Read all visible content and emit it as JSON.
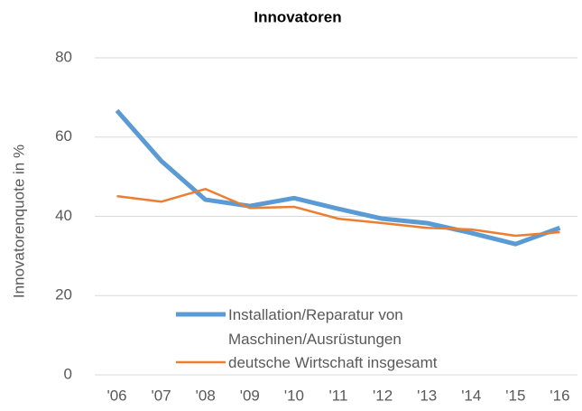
{
  "chart_data": {
    "type": "line",
    "title": "Innovatoren",
    "y_label": "Innovatorenquote in %",
    "categories": [
      "'06",
      "'07",
      "'08",
      "'09",
      "'10",
      "'11",
      "'12",
      "'13",
      "'14",
      "'15",
      "'16"
    ],
    "series": [
      {
        "name": "Installation/Reparatur von Maschinen/Ausrüstungen",
        "color": "#5b9bd5",
        "values": [
          66.7,
          54,
          44.2,
          42.6,
          44.6,
          41.9,
          39.4,
          38.3,
          35.8,
          33,
          37.1
        ]
      },
      {
        "name": "deutsche Wirtschaft insgesamt",
        "color": "#ed7d31",
        "values": [
          45.1,
          43.7,
          46.9,
          42.1,
          42.4,
          39.4,
          38.3,
          37.1,
          36.7,
          35.1,
          36
        ]
      }
    ],
    "ylim": [
      0,
      80
    ],
    "yticks": [
      0,
      20,
      40,
      60,
      80
    ],
    "grid": true
  }
}
